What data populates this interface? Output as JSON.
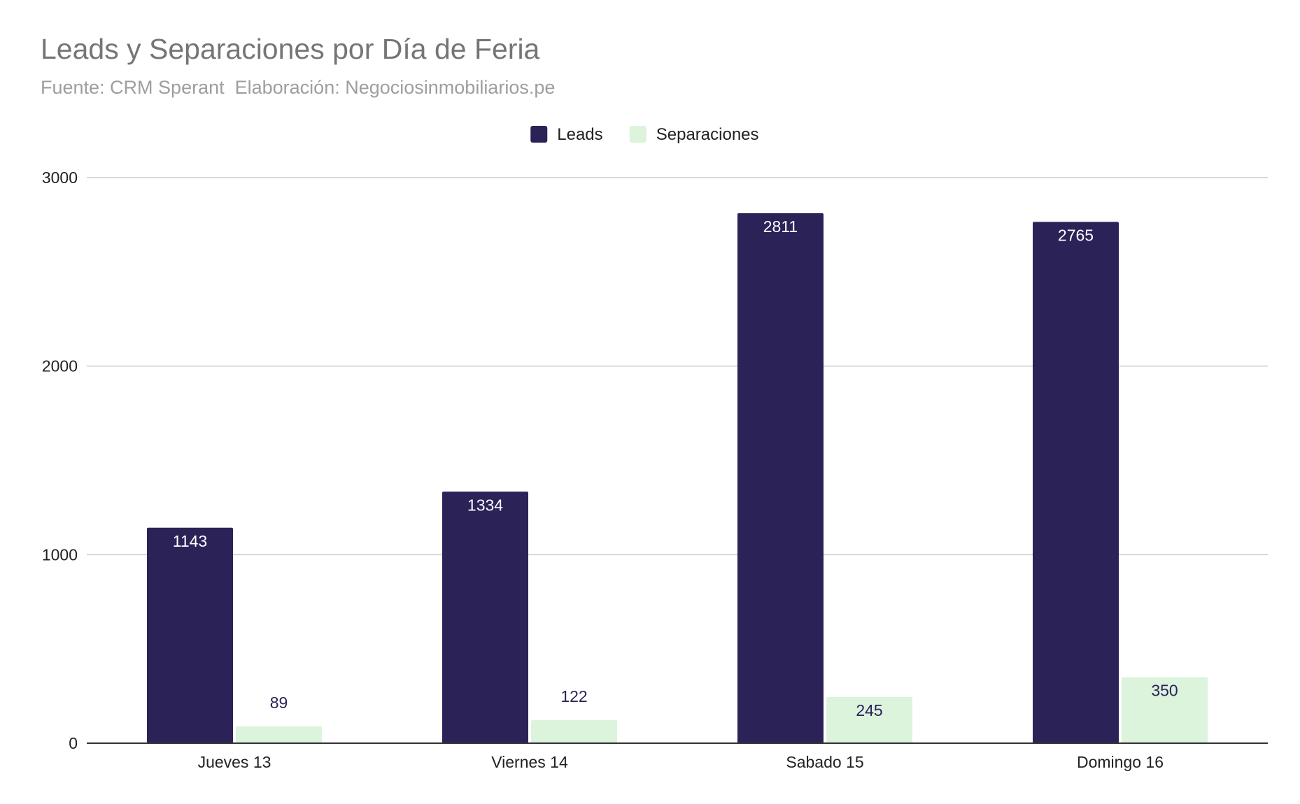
{
  "chart_data": {
    "type": "bar",
    "title": "Leads y Separaciones por Día de Feria",
    "subtitle": "Fuente: CRM Sperant  Elaboración: Negociosinmobiliarios.pe",
    "xlabel": "",
    "ylabel": "",
    "categories": [
      "Jueves 13",
      "Viernes 14",
      "Sabado 15",
      "Domingo 16"
    ],
    "series": [
      {
        "name": "Leads",
        "values": [
          1143,
          1334,
          2811,
          2765
        ],
        "color": "#2b2258",
        "label_color": "#ffffff"
      },
      {
        "name": "Separaciones",
        "values": [
          89,
          122,
          245,
          350
        ],
        "color": "#dcf3dc",
        "label_color": "#2b2258"
      }
    ],
    "ylim": [
      0,
      3000
    ],
    "yticks": [
      0,
      1000,
      2000,
      3000
    ],
    "grid": true,
    "legend_position": "top-center"
  }
}
